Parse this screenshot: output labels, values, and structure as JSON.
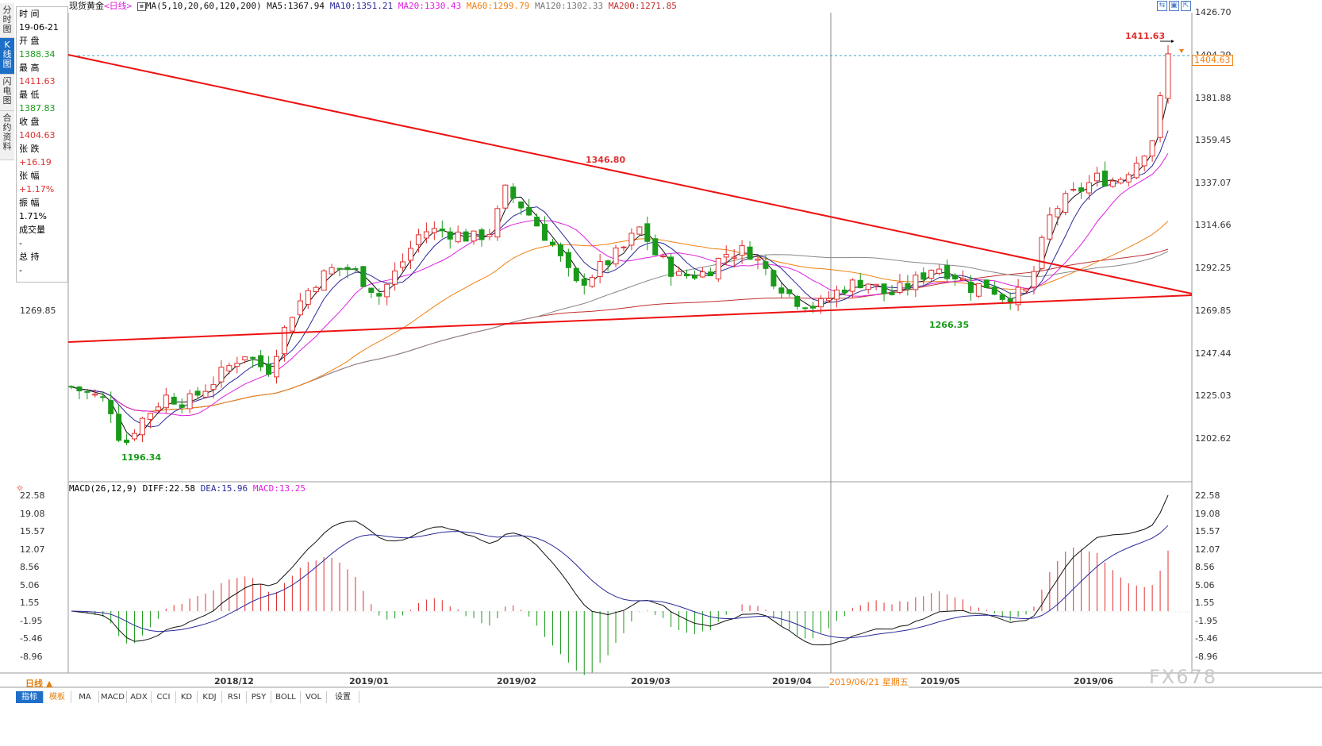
{
  "left_tabs": [
    "分时图",
    "K线图",
    "闪电图",
    "合约资料"
  ],
  "info": [
    {
      "label": "时 间",
      "value": "19-06-21",
      "cls": ""
    },
    {
      "label": "开 盘",
      "value": "1388.34",
      "cls": "green"
    },
    {
      "label": "最 高",
      "value": "1411.63",
      "cls": "red"
    },
    {
      "label": "最 低",
      "value": "1387.83",
      "cls": "green"
    },
    {
      "label": "收 盘",
      "value": "1404.63",
      "cls": "red"
    },
    {
      "label": "张 跌",
      "value": "+16.19",
      "cls": "red"
    },
    {
      "label": "张 幅",
      "value": "+1.17%",
      "cls": "red"
    },
    {
      "label": "振 幅",
      "value": "1.71%",
      "cls": ""
    },
    {
      "label": "成交量",
      "value": "-",
      "cls": ""
    },
    {
      "label": "总 持",
      "value": "-",
      "cls": ""
    }
  ],
  "header": {
    "instrument": "现货黄金",
    "period": "<日线>",
    "ma_params": "MA(5,10,20,60,120,200)",
    "ma5": "MA5:1367.94",
    "ma10": "MA10:1351.21",
    "ma20": "MA20:1330.43",
    "ma60": "MA60:1299.79",
    "ma120": "MA120:1302.33",
    "ma200": "MA200:1271.85"
  },
  "macd_header": {
    "params": "MACD(26,12,9)",
    "diff": "DIFF:22.58",
    "dea": "DEA:15.96",
    "macd": "MACD:13.25"
  },
  "price_axis": [
    "1426.70",
    "1404.29",
    "1381.88",
    "1359.45",
    "1337.07",
    "1314.66",
    "1292.25",
    "1269.85",
    "1247.44",
    "1225.03",
    "1202.62"
  ],
  "price_left_label": "1269.85",
  "current_price": "1404.63",
  "macd_axis": [
    "22.58",
    "19.08",
    "15.57",
    "12.07",
    "8.56",
    "5.06",
    "1.55",
    "-1.95",
    "-5.46",
    "-8.96"
  ],
  "left_macd_axis": [
    "22.58",
    "19.08",
    "15.57",
    "12.07",
    "8.56",
    "5.06",
    "1.55",
    "-1.95",
    "-5.46",
    "-8.96"
  ],
  "annotations": {
    "high_top": "1411.63",
    "high_feb": "1346.80",
    "low_dec": "1196.34",
    "low_may": "1266.35"
  },
  "date_labels": [
    "2018/12",
    "2019/01",
    "2019/02",
    "2019/03",
    "2019/04",
    "2019/05",
    "2019/06"
  ],
  "cursor_date": "2019/06/21 星期五",
  "bottom_tabs": [
    "指标",
    "模板",
    "MA",
    "MACD",
    "ADX",
    "CCI",
    "KD",
    "KDJ",
    "RSI",
    "PSY",
    "BOLL",
    "VOL",
    "设置"
  ],
  "period_selector": "日线 ▲",
  "watermark": "FX678",
  "colors": {
    "up": "#e03030",
    "down": "#1a9a1a",
    "ma5": "#111111",
    "ma10": "#2a2a9a",
    "ma20": "#e020e0",
    "ma60": "#f08010",
    "ma120": "#888888",
    "ma200": "#c03030",
    "trend": "#ee1111"
  }
}
